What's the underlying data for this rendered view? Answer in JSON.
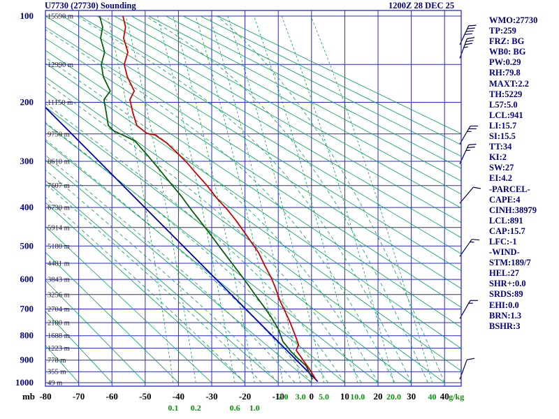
{
  "window": {
    "title": "U7730 (27730) Sounding",
    "datetime": "1200Z 28 DEC 25"
  },
  "axes": {
    "pressure_unit_label": "mb",
    "mixing_unit_label": "g/kg",
    "pressure_ticks": [
      100,
      200,
      300,
      400,
      500,
      600,
      700,
      800,
      900,
      1000
    ],
    "pressure_grid": [
      100,
      150,
      200,
      250,
      300,
      350,
      400,
      450,
      500,
      550,
      600,
      650,
      700,
      750,
      800,
      850,
      900,
      950,
      1000
    ],
    "temp_ticks_c": [
      -80,
      -70,
      -60,
      -50,
      -40,
      -30,
      -20,
      -10,
      0,
      10,
      20,
      30,
      40
    ],
    "height_labels": [
      {
        "p": 100,
        "text": "15590 m"
      },
      {
        "p": 150,
        "text": "12990 m"
      },
      {
        "p": 200,
        "text": "11150 m"
      },
      {
        "p": 250,
        "text": "9750 m"
      },
      {
        "p": 300,
        "text": "8610 m"
      },
      {
        "p": 350,
        "text": "7607 m"
      },
      {
        "p": 400,
        "text": "6730 m"
      },
      {
        "p": 450,
        "text": "5914 m"
      },
      {
        "p": 500,
        "text": "5180 m"
      },
      {
        "p": 550,
        "text": "4481 m"
      },
      {
        "p": 600,
        "text": "3843 m"
      },
      {
        "p": 650,
        "text": "3256 m"
      },
      {
        "p": 700,
        "text": "2704 m"
      },
      {
        "p": 750,
        "text": "2180 m"
      },
      {
        "p": 800,
        "text": "1688 m"
      },
      {
        "p": 850,
        "text": "1223 m"
      },
      {
        "p": 900,
        "text": "778 m"
      },
      {
        "p": 950,
        "text": "355 m"
      },
      {
        "p": 1000,
        "text": "49 m"
      }
    ],
    "mixing_labels": [
      {
        "w": 0.1,
        "text": "0.1",
        "row": 2
      },
      {
        "w": 0.2,
        "text": "0.2",
        "row": 2
      },
      {
        "w": 0.6,
        "text": "0.6",
        "row": 2
      },
      {
        "w": 1.0,
        "text": "1.0",
        "row": 2
      },
      {
        "w": 2.0,
        "text": "2.0",
        "row": 1
      },
      {
        "w": 3.0,
        "text": "3.0",
        "row": 1
      },
      {
        "w": 5.0,
        "text": "5.0",
        "row": 1
      },
      {
        "w": 10.0,
        "text": "10.0",
        "row": 1
      },
      {
        "w": 20.0,
        "text": "20.0",
        "row": 1
      },
      {
        "w": 40,
        "text": "40",
        "row": 1
      }
    ]
  },
  "stats": [
    "WMO:27730",
    "TP:259",
    "FRZ: BG",
    "WB0: BG",
    "PW:0.29",
    "RH:79.8",
    "MAXT:2.2",
    "TH:5229",
    "L57:5.0",
    "LCL:941",
    "LI:15.7",
    "SI:15.5",
    "TT:34",
    "KI:2",
    "SW:27",
    "EI:4.2",
    "-PARCEL-",
    "CAPE:4",
    "CINH:38979",
    "LCL:891",
    "CAP:15.7",
    "LFC:-1",
    "-WIND-",
    "STM:189/7",
    "HEL:27",
    "SHR+:0.0",
    "SRDS:89",
    "EHI:0.0",
    "BRN:1.3",
    "BSHR:3"
  ],
  "colors": {
    "grid": "#2929cc",
    "adiabat": "#00a050",
    "temperature": "#cc0000",
    "dewpoint": "#0a5c0a",
    "parcel": "#0000bb",
    "barb": "#00004d",
    "navy_text": "#000080",
    "green_text": "#009900",
    "black_text": "#000000",
    "height_text": "#222222"
  },
  "chart_data": {
    "type": "line",
    "diagram": "stuve_sounding",
    "title": "U7730 (27730) Sounding",
    "valid": "1200Z 28 DEC 25",
    "x_axis": {
      "quantity": "temperature",
      "unit": "C",
      "range": [
        -80,
        45
      ],
      "ticks": [
        -80,
        -70,
        -60,
        -50,
        -40,
        -30,
        -20,
        -10,
        0,
        10,
        20,
        30,
        40
      ]
    },
    "y_axis": {
      "quantity": "pressure",
      "unit": "mb",
      "scale": "p^0.286",
      "range": [
        1000,
        100
      ]
    },
    "series": [
      {
        "name": "parcel",
        "color": "#0000bb",
        "points_p_mb_t_c": [
          [
            995,
            1.9
          ],
          [
            205,
            -80.5
          ]
        ]
      },
      {
        "name": "dewpoint",
        "color": "#0a5c0a",
        "points_p_mb_t_c": [
          [
            985,
            0.3
          ],
          [
            925,
            -1.6
          ],
          [
            895,
            -3.9
          ],
          [
            865,
            -6.1
          ],
          [
            823,
            -8.6
          ],
          [
            774,
            -10.0
          ],
          [
            730,
            -12.1
          ],
          [
            692,
            -14.3
          ],
          [
            656,
            -16.6
          ],
          [
            617,
            -19.1
          ],
          [
            581,
            -21.6
          ],
          [
            545,
            -24.3
          ],
          [
            509,
            -27.1
          ],
          [
            473,
            -30.0
          ],
          [
            440,
            -32.9
          ],
          [
            406,
            -36.1
          ],
          [
            373,
            -39.2
          ],
          [
            343,
            -42.6
          ],
          [
            314,
            -46.0
          ],
          [
            287,
            -49.5
          ],
          [
            262,
            -53.1
          ],
          [
            252,
            -56.7
          ],
          [
            245,
            -59.4
          ],
          [
            236,
            -61.1
          ],
          [
            216,
            -61.7
          ],
          [
            196,
            -62.4
          ],
          [
            184,
            -60.5
          ],
          [
            165,
            -62.6
          ],
          [
            150,
            -63.2
          ],
          [
            136,
            -62.2
          ],
          [
            121,
            -63.4
          ],
          [
            110,
            -62.8
          ],
          [
            100,
            -63.7
          ]
        ]
      },
      {
        "name": "temperature",
        "color": "#cc0000",
        "points_p_mb_t_c": [
          [
            985,
            1.3
          ],
          [
            939,
            -0.6
          ],
          [
            905,
            -2.3
          ],
          [
            884,
            -3.3
          ],
          [
            859,
            -4.6
          ],
          [
            836,
            -3.9
          ],
          [
            795,
            -5.0
          ],
          [
            747,
            -6.5
          ],
          [
            710,
            -7.9
          ],
          [
            668,
            -9.6
          ],
          [
            626,
            -10.9
          ],
          [
            595,
            -12.1
          ],
          [
            556,
            -14.1
          ],
          [
            519,
            -15.9
          ],
          [
            496,
            -17.6
          ],
          [
            462,
            -20.2
          ],
          [
            432,
            -22.7
          ],
          [
            406,
            -25.2
          ],
          [
            378,
            -28.5
          ],
          [
            350,
            -31.4
          ],
          [
            328,
            -34.2
          ],
          [
            303,
            -37.4
          ],
          [
            283,
            -40.5
          ],
          [
            265,
            -43.7
          ],
          [
            252,
            -47.0
          ],
          [
            249,
            -49.5
          ],
          [
            236,
            -52.5
          ],
          [
            216,
            -53.7
          ],
          [
            196,
            -54.6
          ],
          [
            184,
            -53.3
          ],
          [
            165,
            -55.4
          ],
          [
            150,
            -56.3
          ],
          [
            136,
            -55.2
          ],
          [
            121,
            -56.5
          ],
          [
            110,
            -55.9
          ],
          [
            100,
            -56.7
          ]
        ]
      }
    ],
    "wind_barbs": [
      {
        "p": 128,
        "dir_deg": 25,
        "speed_kt": 40
      },
      {
        "p": 143,
        "dir_deg": 20,
        "speed_kt": 35
      },
      {
        "p": 268,
        "dir_deg": 30,
        "speed_kt": 25
      },
      {
        "p": 305,
        "dir_deg": 25,
        "speed_kt": 25
      },
      {
        "p": 390,
        "dir_deg": 40,
        "speed_kt": 10
      },
      {
        "p": 530,
        "dir_deg": 35,
        "speed_kt": 15
      },
      {
        "p": 735,
        "dir_deg": 30,
        "speed_kt": 15
      },
      {
        "p": 985,
        "dir_deg": 20,
        "speed_kt": 10
      }
    ],
    "background": {
      "dry_adiabats_theta_c": {
        "from": -80,
        "to": 200,
        "step": 10
      },
      "moist_adiabats_thetaw_c": [
        -20,
        -15,
        -10,
        -5,
        0,
        5,
        10,
        15,
        20,
        25,
        30,
        35,
        40
      ],
      "mixing_ratio_gkg": [
        0.1,
        0.2,
        0.6,
        1.0,
        2.0,
        3.0,
        5.0,
        10.0,
        20.0,
        40
      ]
    }
  }
}
